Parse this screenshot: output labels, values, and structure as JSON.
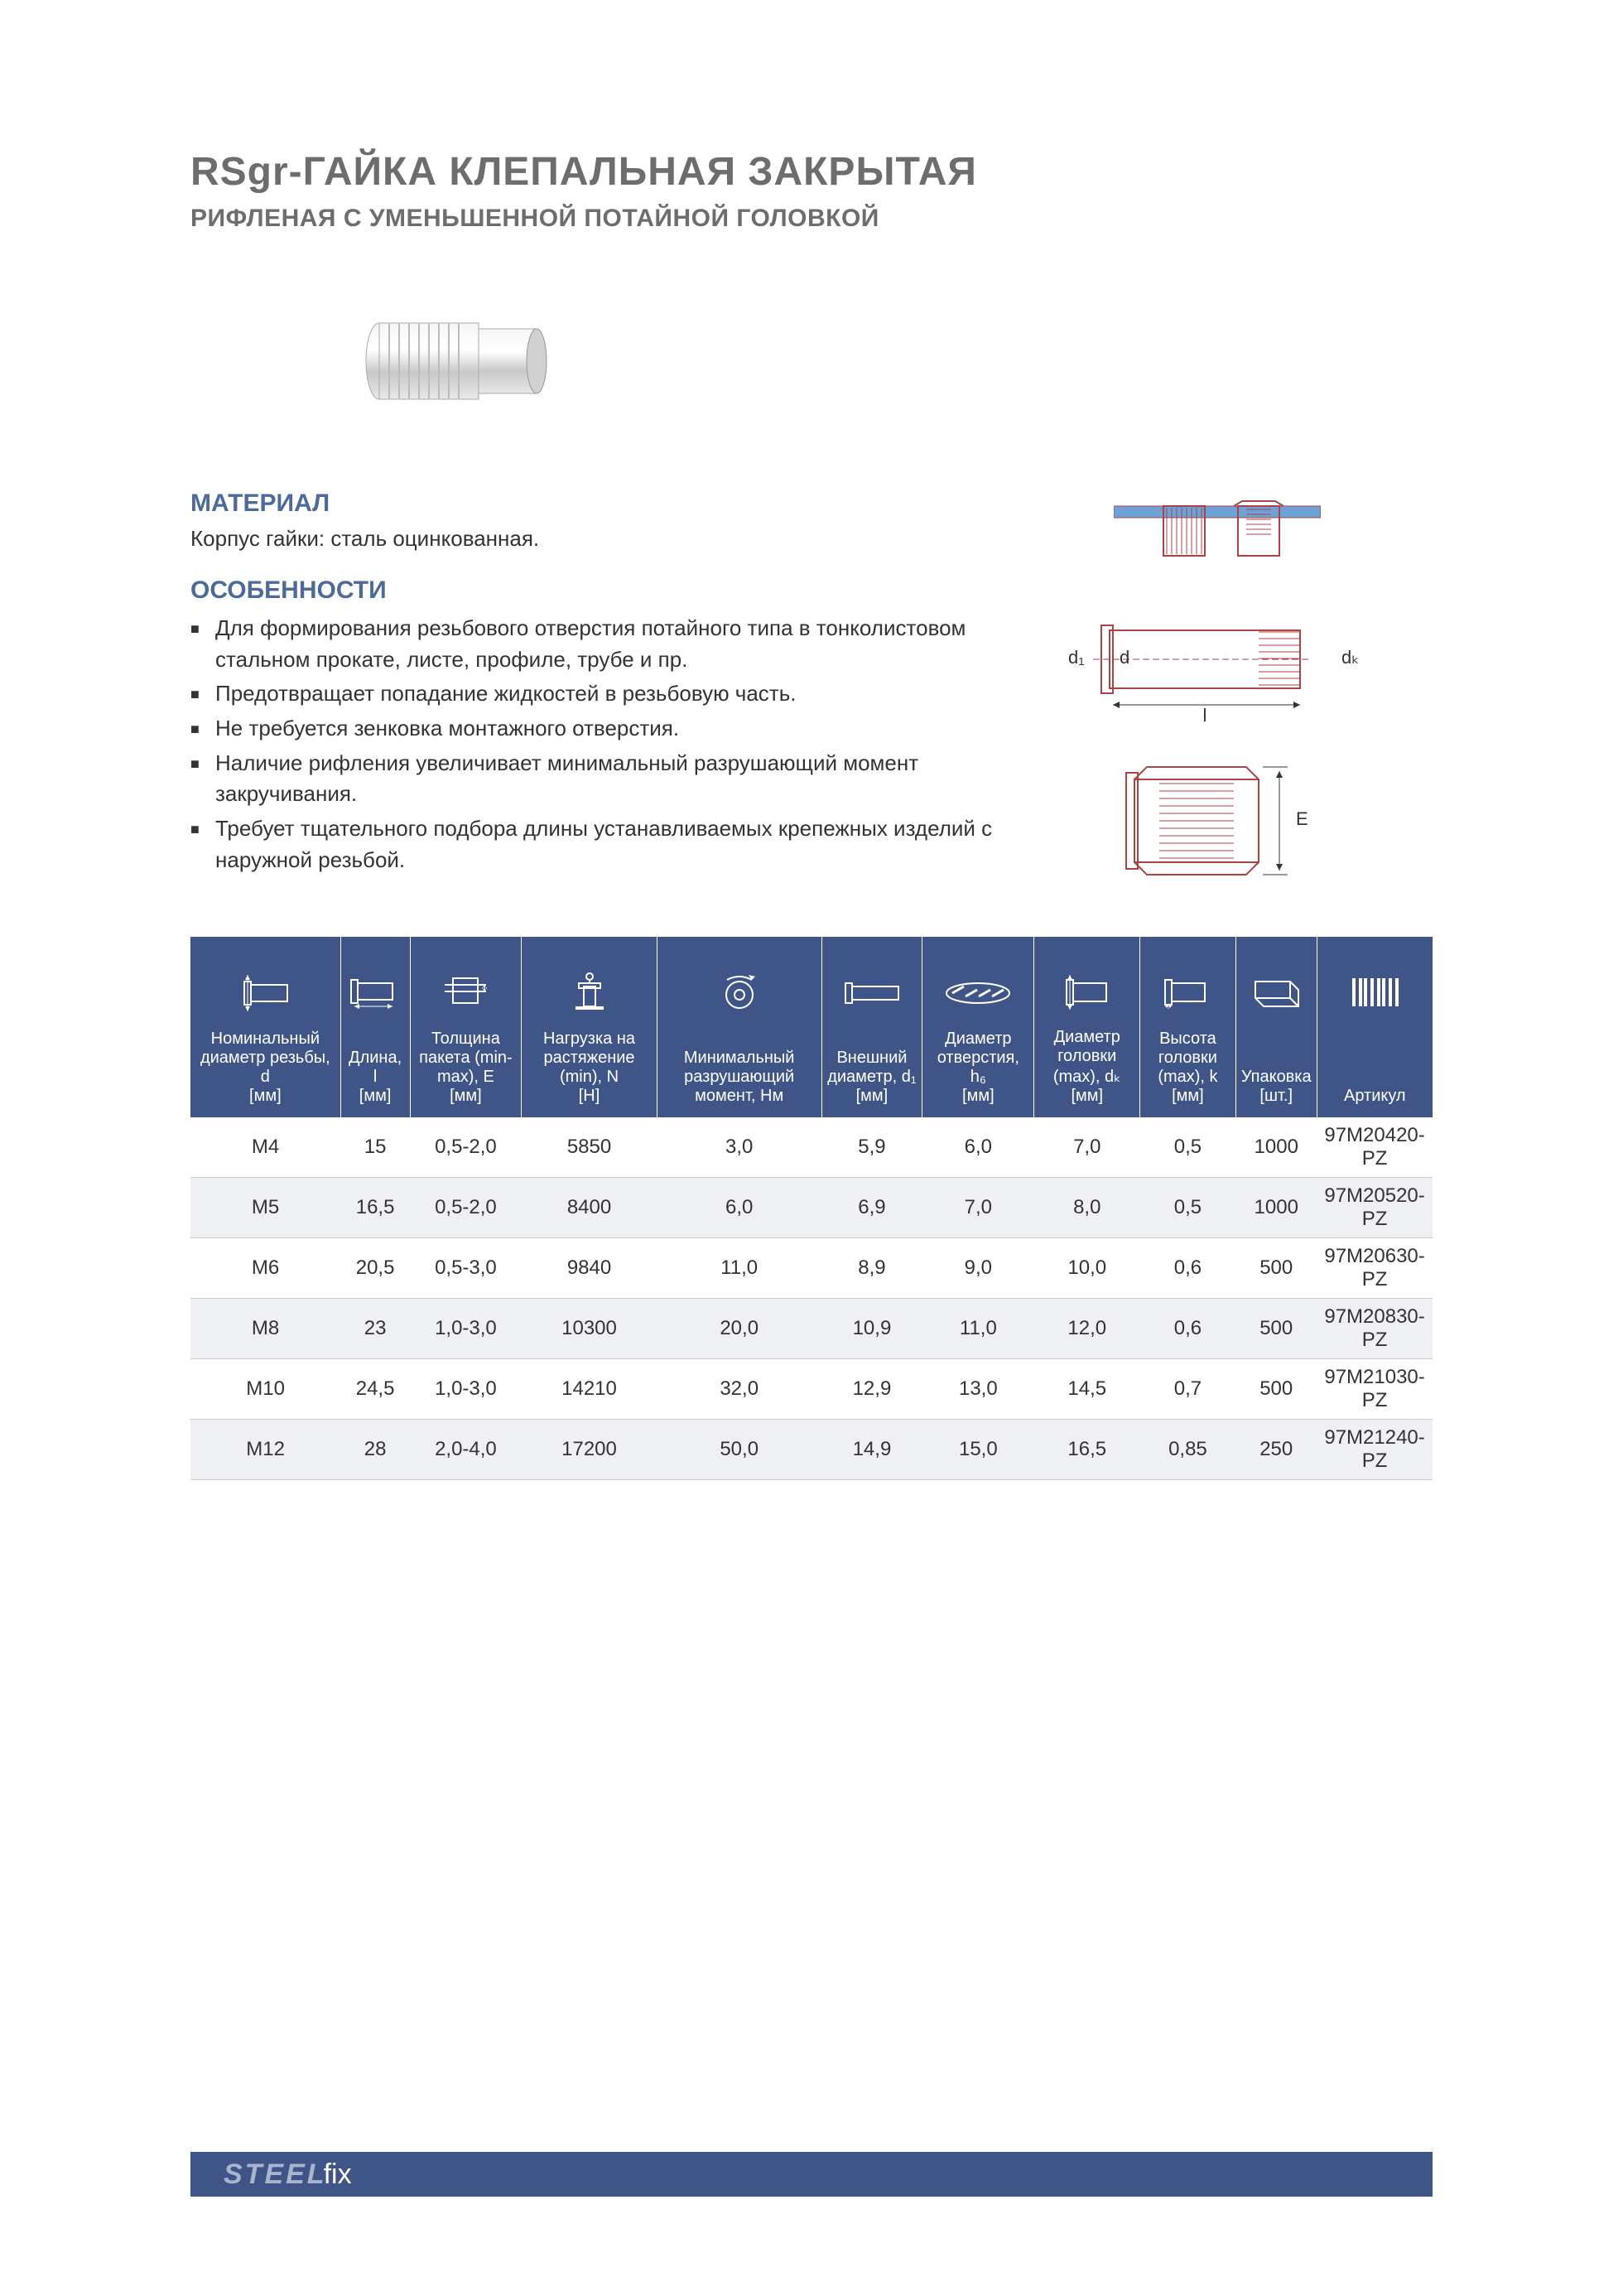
{
  "title": "RSgr-ГАЙКА КЛЕПАЛЬНАЯ ЗАКРЫТАЯ",
  "subtitle": "РИФЛЕНАЯ С УМЕНЬШЕННОЙ ПОТАЙНОЙ ГОЛОВКОЙ",
  "material_heading": "МАТЕРИАЛ",
  "material_text": "Корпус гайки: сталь оцинкованная.",
  "features_heading": "ОСОБЕННОСТИ",
  "features": [
    "Для формирования резьбового отверстия потайного типа в тонколистовом стальном прокате, листе, профиле, трубе и пр.",
    "Предотвращает попадание жидкостей в резьбовую часть.",
    "Не требуется зенковка монтажного отверстия.",
    "Наличие рифления увеличивает минимальный разрушающий момент закручивания.",
    "Требует тщательного подбора длины устанавливаемых крепежных изделий с наружной резьбой."
  ],
  "table": {
    "columns": [
      {
        "label": "Номинальный диаметр резьбы, d",
        "unit": "[мм]"
      },
      {
        "label": "Длина, l",
        "unit": "[мм]"
      },
      {
        "label": "Толщина пакета (min-max), E",
        "unit": "[мм]"
      },
      {
        "label": "Нагрузка на растяжение (min), N",
        "unit": "[H]"
      },
      {
        "label": "Минимальный разрушающий момент, Нм",
        "unit": ""
      },
      {
        "label": "Внешний диаметр, d₁",
        "unit": "[мм]"
      },
      {
        "label": "Диаметр отверстия, h₆",
        "unit": "[мм]"
      },
      {
        "label": "Диаметр головки (max), dₖ",
        "unit": "[мм]"
      },
      {
        "label": "Высота головки (max), k",
        "unit": "[мм]"
      },
      {
        "label": "Упаковка",
        "unit": "[шт.]"
      },
      {
        "label": "Артикул",
        "unit": ""
      }
    ],
    "rows": [
      [
        "M4",
        "15",
        "0,5-2,0",
        "5850",
        "3,0",
        "5,9",
        "6,0",
        "7,0",
        "0,5",
        "1000",
        "97M20420-PZ"
      ],
      [
        "M5",
        "16,5",
        "0,5-2,0",
        "8400",
        "6,0",
        "6,9",
        "7,0",
        "8,0",
        "0,5",
        "1000",
        "97M20520-PZ"
      ],
      [
        "M6",
        "20,5",
        "0,5-3,0",
        "9840",
        "11,0",
        "8,9",
        "9,0",
        "10,0",
        "0,6",
        "500",
        "97M20630-PZ"
      ],
      [
        "M8",
        "23",
        "1,0-3,0",
        "10300",
        "20,0",
        "10,9",
        "11,0",
        "12,0",
        "0,6",
        "500",
        "97M20830-PZ"
      ],
      [
        "M10",
        "24,5",
        "1,0-3,0",
        "14210",
        "32,0",
        "12,9",
        "13,0",
        "14,5",
        "0,7",
        "500",
        "97M21030-PZ"
      ],
      [
        "M12",
        "28",
        "2,0-4,0",
        "17200",
        "50,0",
        "14,9",
        "15,0",
        "16,5",
        "0,85",
        "250",
        "97M21240-PZ"
      ]
    ],
    "header_bg": "#3f5588",
    "header_text_color": "#ffffff",
    "row_alt_bg": "#eef0f4",
    "border_color": "#cccccc"
  },
  "footer_brand_main": "STEEL",
  "footer_brand_suffix": "fix",
  "colors": {
    "heading_gray": "#6d6d6d",
    "section_blue": "#4d6b99",
    "bar_blue": "#3f5588"
  },
  "diagram_labels": {
    "d": "d",
    "d1": "d₁",
    "dk": "dₖ",
    "l": "l",
    "E": "E"
  }
}
